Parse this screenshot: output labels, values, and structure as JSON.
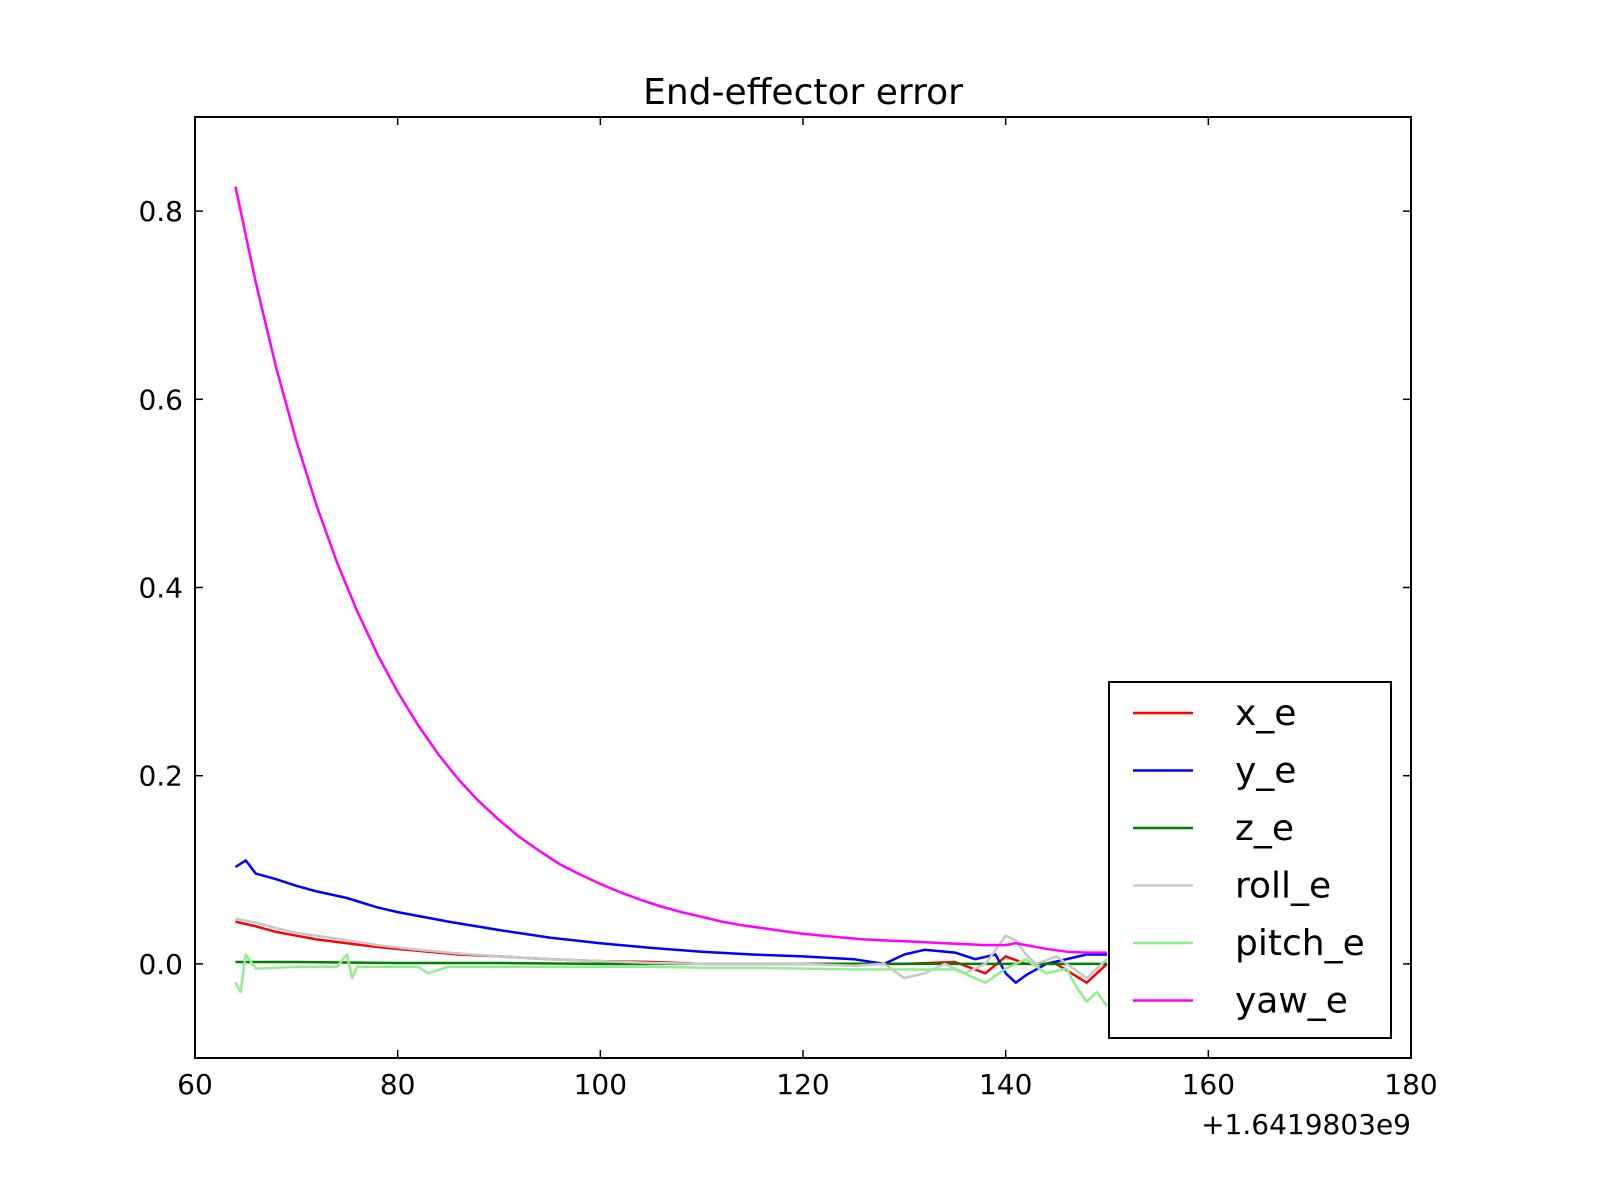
{
  "chart_data": {
    "type": "line",
    "title": "End-effector error",
    "xlabel": "",
    "ylabel": "",
    "x_offset_label": "+1.6419803e9",
    "xlim": [
      60,
      180
    ],
    "ylim": [
      -0.1,
      0.9
    ],
    "xticks": [
      60,
      80,
      100,
      120,
      140,
      160,
      180
    ],
    "yticks": [
      0.0,
      0.2,
      0.4,
      0.6,
      0.8
    ],
    "ytick_labels": [
      "0.0",
      "0.2",
      "0.4",
      "0.6",
      "0.8"
    ],
    "grid": false,
    "legend_position": "lower-right",
    "series": [
      {
        "name": "x_e",
        "color": "#ff0000",
        "points": [
          [
            64,
            0.045
          ],
          [
            66,
            0.04
          ],
          [
            68,
            0.034
          ],
          [
            70,
            0.03
          ],
          [
            72,
            0.026
          ],
          [
            75,
            0.022
          ],
          [
            78,
            0.018
          ],
          [
            82,
            0.014
          ],
          [
            86,
            0.01
          ],
          [
            90,
            0.008
          ],
          [
            95,
            0.005
          ],
          [
            100,
            0.003
          ],
          [
            105,
            0.002
          ],
          [
            110,
            0.0
          ],
          [
            115,
            0.0
          ],
          [
            120,
            0.0
          ],
          [
            125,
            0.0
          ],
          [
            130,
            0.0
          ],
          [
            135,
            0.002
          ],
          [
            138,
            -0.01
          ],
          [
            140,
            0.008
          ],
          [
            142,
            0.0
          ],
          [
            145,
            0.0
          ],
          [
            148,
            -0.02
          ],
          [
            150,
            0.0
          ]
        ]
      },
      {
        "name": "y_e",
        "color": "#0000ff",
        "points": [
          [
            64,
            0.103
          ],
          [
            65,
            0.11
          ],
          [
            66,
            0.096
          ],
          [
            68,
            0.09
          ],
          [
            70,
            0.083
          ],
          [
            72,
            0.077
          ],
          [
            75,
            0.07
          ],
          [
            78,
            0.06
          ],
          [
            80,
            0.055
          ],
          [
            85,
            0.045
          ],
          [
            90,
            0.036
          ],
          [
            95,
            0.028
          ],
          [
            100,
            0.022
          ],
          [
            105,
            0.017
          ],
          [
            110,
            0.013
          ],
          [
            115,
            0.01
          ],
          [
            120,
            0.008
          ],
          [
            125,
            0.005
          ],
          [
            128,
            0.0
          ],
          [
            130,
            0.01
          ],
          [
            132,
            0.015
          ],
          [
            135,
            0.012
          ],
          [
            137,
            0.005
          ],
          [
            139,
            0.01
          ],
          [
            140,
            -0.01
          ],
          [
            141,
            -0.02
          ],
          [
            142,
            -0.012
          ],
          [
            144,
            0.0
          ],
          [
            146,
            0.005
          ],
          [
            148,
            0.01
          ],
          [
            150,
            0.01
          ]
        ]
      },
      {
        "name": "z_e",
        "color": "#007f00",
        "points": [
          [
            64,
            0.002
          ],
          [
            70,
            0.002
          ],
          [
            80,
            0.001
          ],
          [
            90,
            0.001
          ],
          [
            100,
            0.0
          ],
          [
            110,
            0.0
          ],
          [
            120,
            0.0
          ],
          [
            130,
            0.0
          ],
          [
            140,
            0.0
          ],
          [
            150,
            0.0
          ]
        ]
      },
      {
        "name": "roll_e",
        "color": "#c8c8c8",
        "points": [
          [
            64,
            0.048
          ],
          [
            66,
            0.044
          ],
          [
            68,
            0.038
          ],
          [
            70,
            0.033
          ],
          [
            72,
            0.03
          ],
          [
            75,
            0.025
          ],
          [
            78,
            0.02
          ],
          [
            82,
            0.015
          ],
          [
            86,
            0.011
          ],
          [
            90,
            0.008
          ],
          [
            95,
            0.005
          ],
          [
            100,
            0.003
          ],
          [
            105,
            0.001
          ],
          [
            110,
            0.0
          ],
          [
            115,
            0.0
          ],
          [
            120,
            0.0
          ],
          [
            125,
            -0.002
          ],
          [
            128,
            0.0
          ],
          [
            130,
            -0.015
          ],
          [
            132,
            -0.01
          ],
          [
            134,
            0.0
          ],
          [
            136,
            -0.01
          ],
          [
            138,
            0.0
          ],
          [
            139,
            0.015
          ],
          [
            140,
            0.03
          ],
          [
            141,
            0.025
          ],
          [
            142,
            0.01
          ],
          [
            143,
            0.0
          ],
          [
            145,
            0.008
          ],
          [
            148,
            -0.015
          ],
          [
            150,
            0.005
          ]
        ]
      },
      {
        "name": "pitch_e",
        "color": "#90ee90",
        "points": [
          [
            64,
            -0.02
          ],
          [
            64.5,
            -0.03
          ],
          [
            65,
            0.01
          ],
          [
            66,
            -0.005
          ],
          [
            68,
            -0.004
          ],
          [
            70,
            -0.003
          ],
          [
            72,
            -0.003
          ],
          [
            74,
            -0.003
          ],
          [
            75,
            0.01
          ],
          [
            75.5,
            -0.015
          ],
          [
            76,
            -0.003
          ],
          [
            78,
            -0.003
          ],
          [
            80,
            -0.003
          ],
          [
            82,
            -0.003
          ],
          [
            83,
            -0.01
          ],
          [
            85,
            -0.003
          ],
          [
            90,
            -0.003
          ],
          [
            95,
            -0.003
          ],
          [
            100,
            -0.003
          ],
          [
            105,
            -0.003
          ],
          [
            110,
            -0.004
          ],
          [
            115,
            -0.004
          ],
          [
            120,
            -0.005
          ],
          [
            125,
            -0.006
          ],
          [
            130,
            -0.006
          ],
          [
            135,
            -0.006
          ],
          [
            138,
            -0.02
          ],
          [
            140,
            -0.005
          ],
          [
            142,
            0.005
          ],
          [
            144,
            -0.01
          ],
          [
            146,
            -0.005
          ],
          [
            147,
            -0.025
          ],
          [
            148,
            -0.04
          ],
          [
            149,
            -0.03
          ],
          [
            150,
            -0.045
          ]
        ]
      },
      {
        "name": "yaw_e",
        "color": "#ff00ff",
        "points": [
          [
            64,
            0.826
          ],
          [
            66,
            0.724
          ],
          [
            68,
            0.634
          ],
          [
            70,
            0.556
          ],
          [
            72,
            0.487
          ],
          [
            74,
            0.427
          ],
          [
            76,
            0.375
          ],
          [
            78,
            0.329
          ],
          [
            80,
            0.289
          ],
          [
            82,
            0.254
          ],
          [
            84,
            0.223
          ],
          [
            86,
            0.196
          ],
          [
            88,
            0.173
          ],
          [
            90,
            0.153
          ],
          [
            92,
            0.135
          ],
          [
            94,
            0.12
          ],
          [
            96,
            0.106
          ],
          [
            98,
            0.095
          ],
          [
            100,
            0.085
          ],
          [
            102,
            0.076
          ],
          [
            104,
            0.068
          ],
          [
            106,
            0.061
          ],
          [
            108,
            0.055
          ],
          [
            110,
            0.05
          ],
          [
            112,
            0.045
          ],
          [
            114,
            0.041
          ],
          [
            116,
            0.038
          ],
          [
            118,
            0.035
          ],
          [
            120,
            0.032
          ],
          [
            122,
            0.03
          ],
          [
            124,
            0.028
          ],
          [
            126,
            0.026
          ],
          [
            128,
            0.025
          ],
          [
            130,
            0.024
          ],
          [
            132,
            0.023
          ],
          [
            134,
            0.022
          ],
          [
            136,
            0.021
          ],
          [
            138,
            0.02
          ],
          [
            140,
            0.02
          ],
          [
            141,
            0.022
          ],
          [
            142,
            0.02
          ],
          [
            144,
            0.016
          ],
          [
            146,
            0.013
          ],
          [
            148,
            0.012
          ],
          [
            150,
            0.012
          ]
        ]
      }
    ]
  }
}
